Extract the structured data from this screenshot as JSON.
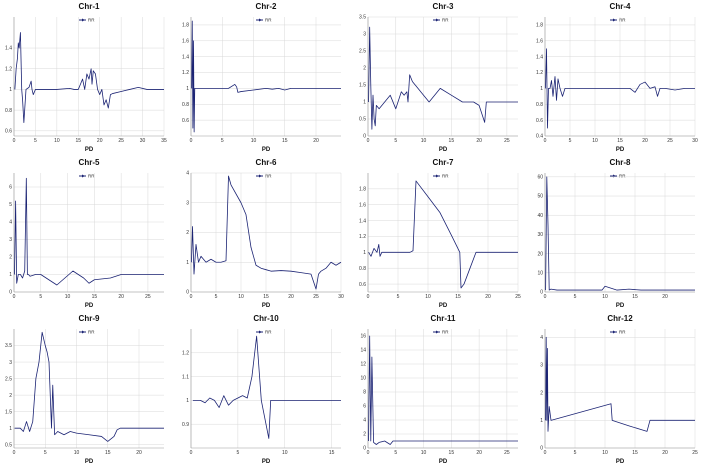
{
  "figure": {
    "line_color": "#1c2474",
    "grid_color": "#d9d9d9"
  },
  "chart_data": [
    {
      "title": "Chr-1",
      "type": "line",
      "xlabel": "PD",
      "legend": "RR",
      "legend_position": "top-center",
      "xlim": [
        0,
        35
      ],
      "ylim": [
        0.55,
        1.7
      ],
      "xticks": [
        0,
        5,
        10,
        15,
        20,
        25,
        30,
        35
      ],
      "xtick_labels": [
        "0",
        "5",
        "10",
        "15",
        "20",
        "25",
        "30",
        "35"
      ],
      "yticks": [
        0.6,
        0.8,
        1,
        1.2,
        1.4
      ],
      "ytick_labels": [
        "0.6",
        "0.8",
        "1",
        "1.2",
        "1.4"
      ],
      "series": [
        {
          "x": [
            0.2,
            0.5,
            0.8,
            1.0,
            1.2,
            1.5,
            1.8,
            2.0,
            2.3,
            2.8,
            3.5,
            4.0,
            4.2,
            4.5,
            5,
            8,
            10,
            13,
            14,
            15,
            15.5,
            16,
            16.5,
            17,
            17.5,
            18,
            18.2,
            18.5,
            19,
            19.5,
            20,
            20.5,
            21,
            21.5,
            22,
            22.5,
            23,
            25,
            27,
            29,
            31,
            33,
            35
          ],
          "y": [
            1.0,
            1.2,
            1.3,
            1.45,
            1.4,
            1.55,
            1.0,
            0.9,
            0.68,
            1.0,
            1.02,
            1.08,
            1.0,
            0.95,
            1.0,
            1.0,
            1.0,
            1.01,
            1.0,
            1.0,
            1.05,
            1.1,
            1.0,
            1.15,
            1.1,
            1.2,
            1.05,
            1.18,
            1.15,
            1.0,
            0.95,
            1.0,
            0.85,
            0.9,
            0.82,
            0.95,
            0.96,
            0.98,
            1.0,
            1.02,
            1.0,
            1.0,
            1.0
          ]
        }
      ]
    },
    {
      "title": "Chr-2",
      "type": "line",
      "xlabel": "PD",
      "legend": "RR",
      "legend_position": "top-center",
      "xlim": [
        0,
        24
      ],
      "ylim": [
        0.4,
        1.9
      ],
      "xticks": [
        0,
        5,
        10,
        15,
        20
      ],
      "xtick_labels": [
        "0",
        "5",
        "10",
        "15",
        "20"
      ],
      "yticks": [
        0.6,
        0.8,
        1,
        1.2,
        1.4,
        1.6,
        1.8
      ],
      "ytick_labels": [
        "0.6",
        "0.8",
        "1",
        "1.2",
        "1.4",
        "1.6",
        "1.8"
      ],
      "series": [
        {
          "x": [
            0.1,
            0.2,
            0.3,
            0.4,
            0.5,
            0.6,
            0.8,
            1,
            2,
            4,
            6,
            7,
            7.3,
            7.5,
            8,
            10,
            12,
            13,
            14,
            15,
            16,
            18,
            20,
            22,
            24
          ],
          "y": [
            1.0,
            1.85,
            0.5,
            1.6,
            0.45,
            1.0,
            1.0,
            1.0,
            1.0,
            1.0,
            1.0,
            1.05,
            1.02,
            0.95,
            0.96,
            0.98,
            1.0,
            0.99,
            1.0,
            0.98,
            1.0,
            1.0,
            1.0,
            1.0,
            1.0
          ]
        }
      ]
    },
    {
      "title": "Chr-3",
      "type": "line",
      "xlabel": "PD",
      "legend": "RR",
      "legend_position": "top-center",
      "xlim": [
        0,
        27
      ],
      "ylim": [
        0,
        3.5
      ],
      "xticks": [
        0,
        5,
        10,
        15,
        20,
        25
      ],
      "xtick_labels": [
        "0",
        "5",
        "10",
        "15",
        "20",
        "25"
      ],
      "yticks": [
        0,
        0.5,
        1,
        1.5,
        2,
        2.5,
        3,
        3.5
      ],
      "ytick_labels": [
        "0",
        "0.5",
        "1",
        "1.5",
        "2",
        "2.5",
        "3",
        "3.5"
      ],
      "series": [
        {
          "x": [
            0.1,
            0.3,
            0.5,
            0.7,
            0.9,
            1.1,
            1.3,
            1.5,
            2,
            3,
            4,
            5,
            6,
            6.5,
            7,
            7.2,
            7.5,
            8,
            9,
            10,
            11,
            13,
            15,
            17,
            19,
            20,
            21,
            21.3,
            22,
            24,
            26,
            27
          ],
          "y": [
            1.0,
            3.2,
            1.5,
            0.2,
            1.2,
            0.5,
            0.3,
            0.9,
            0.8,
            1.0,
            1.2,
            0.8,
            1.3,
            1.2,
            1.3,
            1.0,
            1.8,
            1.6,
            1.4,
            1.2,
            1.0,
            1.4,
            1.2,
            1.0,
            1.0,
            0.9,
            0.4,
            1.0,
            1.0,
            1.0,
            1.0,
            1.0
          ]
        }
      ]
    },
    {
      "title": "Chr-4",
      "type": "line",
      "xlabel": "PD",
      "legend": "RR",
      "legend_position": "top-center",
      "xlim": [
        0,
        30
      ],
      "ylim": [
        0.4,
        1.9
      ],
      "xticks": [
        0,
        5,
        10,
        15,
        20,
        25,
        30
      ],
      "xtick_labels": [
        "0",
        "5",
        "10",
        "15",
        "20",
        "25",
        "30"
      ],
      "yticks": [
        0.4,
        0.6,
        0.8,
        1,
        1.2,
        1.4,
        1.6,
        1.8
      ],
      "ytick_labels": [
        "0.4",
        "0.6",
        "0.8",
        "1",
        "1.2",
        "1.4",
        "1.6",
        "1.8"
      ],
      "series": [
        {
          "x": [
            0.1,
            0.3,
            0.5,
            0.7,
            1,
            1.3,
            1.6,
            2,
            2.3,
            2.6,
            3,
            3.5,
            4,
            6,
            8,
            10,
            14,
            17,
            18,
            19,
            20,
            21,
            22,
            22.5,
            23,
            24,
            26,
            28,
            30
          ],
          "y": [
            1.0,
            1.5,
            0.5,
            1.0,
            1.0,
            1.1,
            0.9,
            1.15,
            0.85,
            1.12,
            1.0,
            0.9,
            1.0,
            1.0,
            1.0,
            1.0,
            1.0,
            1.0,
            0.95,
            1.05,
            1.08,
            1.0,
            1.02,
            0.9,
            1.0,
            1.0,
            0.98,
            1.0,
            1.0
          ]
        }
      ]
    },
    {
      "title": "Chr-5",
      "type": "line",
      "xlabel": "PD",
      "legend": "RR",
      "legend_position": "top-center",
      "xlim": [
        0,
        28
      ],
      "ylim": [
        0,
        6.8
      ],
      "xticks": [
        0,
        5,
        10,
        15,
        20,
        25
      ],
      "xtick_labels": [
        "0",
        "5",
        "10",
        "15",
        "20",
        "25"
      ],
      "yticks": [
        0,
        1,
        2,
        3,
        4,
        5,
        6
      ],
      "ytick_labels": [
        "0",
        "1",
        "2",
        "3",
        "4",
        "5",
        "6"
      ],
      "series": [
        {
          "x": [
            0.1,
            0.3,
            0.5,
            0.8,
            1.2,
            1.6,
            2.0,
            2.3,
            2.5,
            2.7,
            3,
            4,
            5,
            8,
            11,
            12,
            13,
            14,
            15,
            18,
            20,
            23,
            25,
            28
          ],
          "y": [
            1.0,
            5.2,
            0.5,
            1.0,
            1.0,
            0.8,
            1.2,
            6.5,
            1.0,
            1.0,
            0.9,
            1.0,
            1.0,
            0.4,
            1.2,
            1.0,
            0.8,
            0.5,
            0.7,
            0.8,
            1.0,
            1.0,
            1.0,
            1.0
          ]
        }
      ]
    },
    {
      "title": "Chr-6",
      "type": "line",
      "xlabel": "PD",
      "legend": "RR",
      "legend_position": "top-center",
      "xlim": [
        0,
        30
      ],
      "ylim": [
        0,
        4
      ],
      "xticks": [
        0,
        5,
        10,
        15,
        20,
        25,
        30
      ],
      "xtick_labels": [
        "0",
        "5",
        "10",
        "15",
        "20",
        "25",
        "30"
      ],
      "yticks": [
        0,
        1,
        2,
        3,
        4
      ],
      "ytick_labels": [
        "0",
        "1",
        "2",
        "3",
        "4"
      ],
      "series": [
        {
          "x": [
            0.1,
            0.3,
            0.6,
            1,
            1.5,
            2,
            3,
            4,
            5,
            6,
            7,
            7.5,
            8,
            10,
            11,
            12,
            12.5,
            13,
            14,
            15,
            16,
            18,
            20,
            22,
            24,
            25,
            25.5,
            26,
            27,
            28,
            29,
            30
          ],
          "y": [
            1.0,
            2.2,
            0.6,
            1.6,
            1.0,
            1.2,
            1.0,
            1.1,
            1.0,
            1.0,
            1.05,
            3.9,
            3.6,
            3.0,
            2.6,
            1.5,
            1.2,
            0.9,
            0.8,
            0.75,
            0.7,
            0.72,
            0.7,
            0.65,
            0.6,
            0.1,
            0.6,
            0.7,
            0.8,
            1.0,
            0.9,
            1.0
          ]
        }
      ]
    },
    {
      "title": "Chr-7",
      "type": "line",
      "xlabel": "PD",
      "legend": "RR",
      "legend_position": "top-center",
      "xlim": [
        0,
        25
      ],
      "ylim": [
        0.5,
        2.0
      ],
      "xticks": [
        0,
        5,
        10,
        15,
        20,
        25
      ],
      "xtick_labels": [
        "0",
        "5",
        "10",
        "15",
        "20",
        "25"
      ],
      "yticks": [
        0.6,
        0.8,
        1,
        1.2,
        1.4,
        1.6,
        1.8
      ],
      "ytick_labels": [
        "0.6",
        "0.8",
        "1",
        "1.2",
        "1.4",
        "1.6",
        "1.8"
      ],
      "series": [
        {
          "x": [
            0.1,
            0.5,
            1,
            1.5,
            1.8,
            2,
            2.3,
            3,
            5,
            7,
            7.5,
            8,
            10,
            12,
            14,
            15.3,
            15.5,
            16,
            17,
            18,
            19,
            20,
            22,
            25
          ],
          "y": [
            1.0,
            0.95,
            1.05,
            1.0,
            1.1,
            0.95,
            1.0,
            1.0,
            1.0,
            1.0,
            1.02,
            1.9,
            1.7,
            1.5,
            1.2,
            1.0,
            0.55,
            0.6,
            0.8,
            1.0,
            1.0,
            1.0,
            1.0,
            1.0
          ]
        }
      ]
    },
    {
      "title": "Chr-8",
      "type": "line",
      "xlabel": "PD",
      "legend": "RR",
      "legend_position": "top-center",
      "xlim": [
        0,
        25
      ],
      "ylim": [
        0,
        62
      ],
      "xticks": [
        0,
        5,
        10,
        15,
        20
      ],
      "xtick_labels": [
        "0",
        "5",
        "10",
        "15",
        "20"
      ],
      "yticks": [
        0,
        10,
        20,
        30,
        40,
        50,
        60
      ],
      "ytick_labels": [
        "0",
        "10",
        "20",
        "30",
        "40",
        "50",
        "60"
      ],
      "series": [
        {
          "x": [
            0.1,
            0.3,
            0.5,
            0.7,
            1,
            2,
            4,
            6,
            8,
            9.5,
            10,
            12,
            14,
            16,
            18,
            20,
            22,
            25
          ],
          "y": [
            1.0,
            60,
            35,
            1.0,
            1.5,
            1.0,
            1.0,
            1.0,
            1.0,
            1.0,
            3.0,
            1.0,
            1.5,
            1.0,
            1.0,
            1.0,
            1.0,
            1.0
          ]
        }
      ]
    },
    {
      "title": "Chr-9",
      "type": "line",
      "xlabel": "PD",
      "legend": "RR",
      "legend_position": "top-center",
      "xlim": [
        0,
        24
      ],
      "ylim": [
        0.4,
        4.0
      ],
      "xticks": [
        0,
        5,
        10,
        15,
        20
      ],
      "xtick_labels": [
        "0",
        "5",
        "10",
        "15",
        "20"
      ],
      "yticks": [
        0.5,
        1,
        1.5,
        2,
        2.5,
        3,
        3.5
      ],
      "ytick_labels": [
        "0.5",
        "1",
        "1.5",
        "2",
        "2.5",
        "3",
        "3.5"
      ],
      "series": [
        {
          "x": [
            0.1,
            1,
            1.5,
            2,
            2.5,
            3,
            3.5,
            4,
            4.5,
            5,
            5.3,
            5.6,
            6,
            6.2,
            6.5,
            7,
            8,
            9,
            10,
            12,
            14,
            15,
            16,
            16.5,
            17,
            18,
            20,
            22,
            24
          ],
          "y": [
            1.0,
            1.0,
            0.9,
            1.2,
            0.9,
            1.2,
            2.5,
            3.0,
            3.9,
            3.5,
            3.3,
            3.0,
            1.0,
            2.3,
            0.8,
            0.9,
            0.8,
            0.9,
            0.85,
            0.8,
            0.75,
            0.6,
            0.75,
            0.95,
            1.0,
            1.0,
            1.0,
            1.0,
            1.0
          ]
        }
      ]
    },
    {
      "title": "Chr-10",
      "type": "line",
      "xlabel": "PD",
      "legend": "RR",
      "legend_position": "top-center",
      "xlim": [
        0,
        16
      ],
      "ylim": [
        0.8,
        1.3
      ],
      "xticks": [
        0,
        5,
        10,
        15
      ],
      "xtick_labels": [
        "0",
        "5",
        "10",
        "15"
      ],
      "yticks": [
        0.9,
        1,
        1.1,
        1.2
      ],
      "ytick_labels": [
        "0.9",
        "1",
        "1.1",
        "1.2"
      ],
      "series": [
        {
          "x": [
            0.2,
            1,
            1.5,
            2,
            2.5,
            3,
            3.5,
            4,
            4.5,
            5,
            5.5,
            6,
            6.5,
            7,
            7.5,
            8,
            8.3,
            8.5,
            9,
            10,
            12,
            14,
            16
          ],
          "y": [
            1.0,
            1.0,
            0.99,
            1.01,
            1.0,
            0.97,
            1.02,
            0.98,
            1.0,
            1.01,
            1.02,
            1.01,
            1.1,
            1.27,
            1.0,
            0.9,
            0.84,
            1.0,
            1.0,
            1.0,
            1.0,
            1.0,
            1.0
          ]
        }
      ]
    },
    {
      "title": "Chr-11",
      "type": "line",
      "xlabel": "PD",
      "legend": "RR",
      "legend_position": "top-center",
      "xlim": [
        0,
        27
      ],
      "ylim": [
        0,
        17
      ],
      "xticks": [
        0,
        5,
        10,
        15,
        20,
        25
      ],
      "xtick_labels": [
        "0",
        "5",
        "10",
        "15",
        "20",
        "25"
      ],
      "yticks": [
        0,
        2,
        4,
        6,
        8,
        10,
        12,
        14,
        16
      ],
      "ytick_labels": [
        "0",
        "2",
        "4",
        "6",
        "8",
        "10",
        "12",
        "14",
        "16"
      ],
      "series": [
        {
          "x": [
            0.1,
            0.3,
            0.5,
            0.7,
            1,
            1.5,
            2,
            3,
            4,
            4.5,
            5,
            6,
            8,
            10,
            15,
            20,
            25,
            27
          ],
          "y": [
            1.0,
            16,
            1.0,
            13,
            0.8,
            0.5,
            0.8,
            1.0,
            0.5,
            1.0,
            1.0,
            1.0,
            1.0,
            1.0,
            1.0,
            1.0,
            1.0,
            1.0
          ]
        }
      ]
    },
    {
      "title": "Chr-12",
      "type": "line",
      "xlabel": "PD",
      "legend": "RR",
      "legend_position": "top-center",
      "xlim": [
        0,
        25
      ],
      "ylim": [
        0,
        4.3
      ],
      "xticks": [
        0,
        5,
        10,
        15,
        20,
        25
      ],
      "xtick_labels": [
        "0",
        "5",
        "10",
        "15",
        "20",
        "25"
      ],
      "yticks": [
        0,
        1,
        2,
        3,
        4
      ],
      "ytick_labels": [
        "0",
        "1",
        "2",
        "3",
        "4"
      ],
      "series": [
        {
          "x": [
            0.1,
            0.2,
            0.3,
            0.4,
            0.5,
            0.7,
            1,
            11,
            11.2,
            14,
            17,
            17.5,
            19,
            22,
            25
          ],
          "y": [
            1.0,
            4.0,
            1.0,
            3.6,
            0.6,
            1.5,
            1.0,
            1.6,
            1.0,
            0.8,
            0.6,
            1.0,
            1.0,
            1.0,
            1.0
          ]
        }
      ]
    }
  ]
}
